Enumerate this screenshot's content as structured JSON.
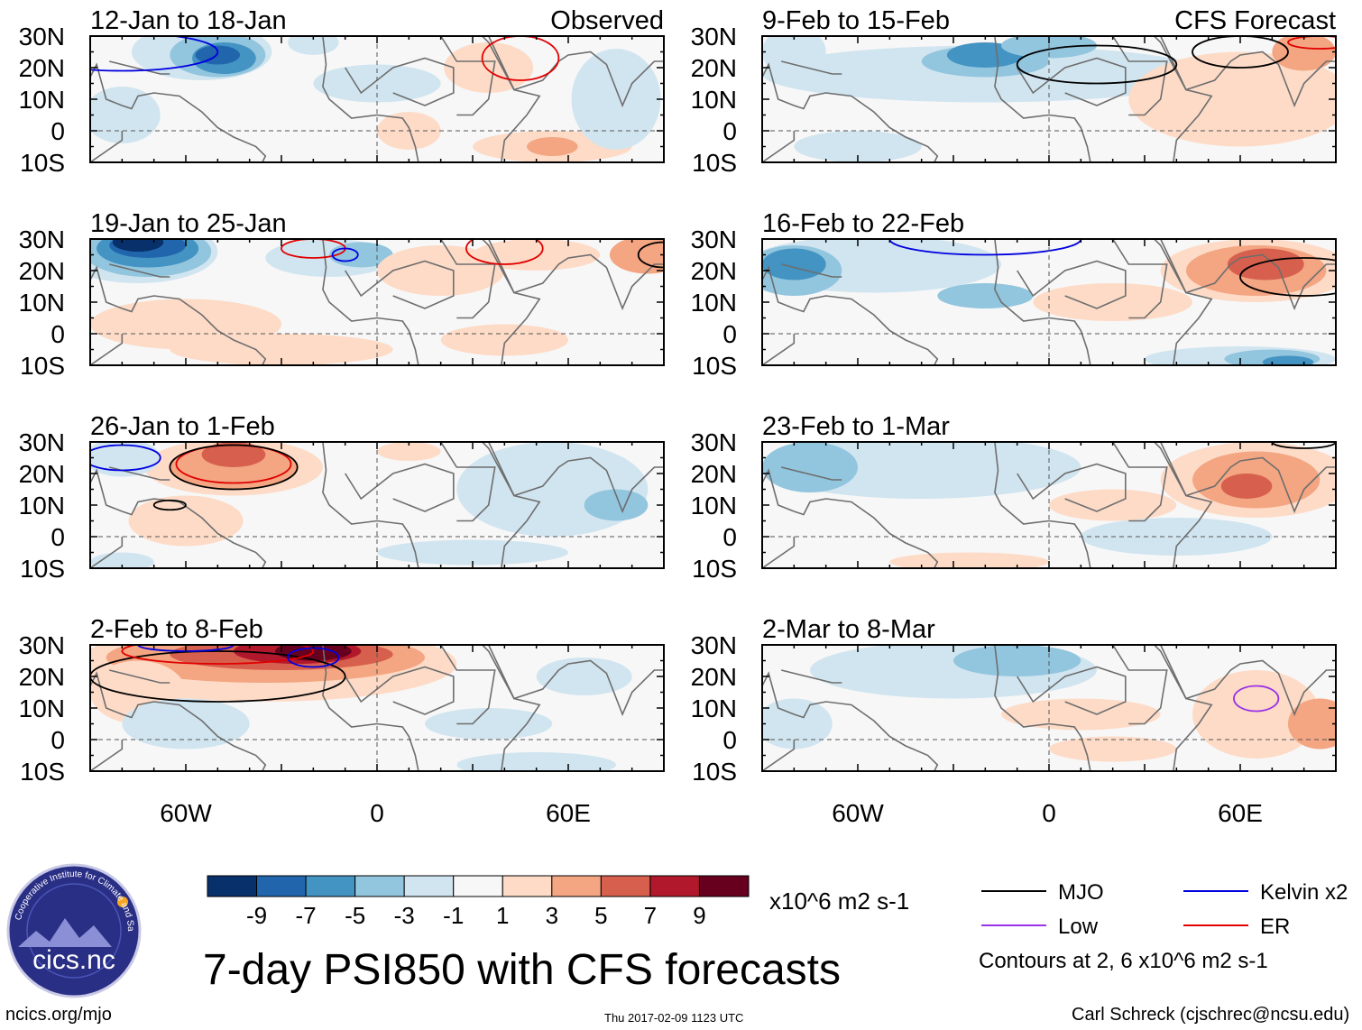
{
  "figure": {
    "main_title": "7-day PSI850 with CFS forecasts",
    "observed_label": "Observed",
    "forecast_label": "CFS Forecast",
    "units": "x10^6 m2 s-1",
    "contours_note": "Contours at 2, 6 x10^6 m2 s-1",
    "footer_left": "ncics.org/mjo",
    "footer_center": "Thu 2017-02-09 1123 UTC",
    "footer_right": "Carl Schreck (cjschrec@ncsu.edu)",
    "logo": {
      "text": "cics.nc",
      "ring_text": "Cooperative Institute for Climate and Satellites"
    }
  },
  "chart_data": {
    "type": "heatmap",
    "variable": "PSI850 anomaly",
    "lat_ticks": [
      "30N",
      "20N",
      "10N",
      "0",
      "10S"
    ],
    "lon_ticks": [
      "60W",
      "0",
      "60E"
    ],
    "lat_range": [
      -10,
      30
    ],
    "lon_range": [
      -90,
      90
    ],
    "colorbar": {
      "levels": [
        "-9",
        "-7",
        "-5",
        "-3",
        "-1",
        "1",
        "3",
        "5",
        "7",
        "9"
      ],
      "colors": [
        "#08306b",
        "#2166ac",
        "#4393c3",
        "#92c5de",
        "#d1e5f0",
        "#f7f7f7",
        "#fddbc7",
        "#f4a582",
        "#d6604d",
        "#b2182b",
        "#67001f"
      ]
    },
    "panels": [
      {
        "title": "12-Jan to 18-Jan",
        "kind": "Observed",
        "column": "left",
        "row": 0
      },
      {
        "title": "19-Jan to 25-Jan",
        "kind": "Observed",
        "column": "left",
        "row": 1
      },
      {
        "title": "26-Jan to 1-Feb",
        "kind": "Observed",
        "column": "left",
        "row": 2
      },
      {
        "title": "2-Feb to 8-Feb",
        "kind": "Observed",
        "column": "left",
        "row": 3
      },
      {
        "title": "9-Feb to 15-Feb",
        "kind": "CFS Forecast",
        "column": "right",
        "row": 0
      },
      {
        "title": "16-Feb to 22-Feb",
        "kind": "CFS Forecast",
        "column": "right",
        "row": 1
      },
      {
        "title": "23-Feb to 1-Mar",
        "kind": "CFS Forecast",
        "column": "right",
        "row": 2
      },
      {
        "title": "2-Mar to 8-Mar",
        "kind": "CFS Forecast",
        "column": "right",
        "row": 3
      }
    ],
    "legend": [
      {
        "label": "MJO",
        "color": "#000000"
      },
      {
        "label": "Kelvin x2",
        "color": "#0000e0"
      },
      {
        "label": "Low",
        "color": "#9a32e6"
      },
      {
        "label": "ER",
        "color": "#e00000"
      }
    ]
  }
}
